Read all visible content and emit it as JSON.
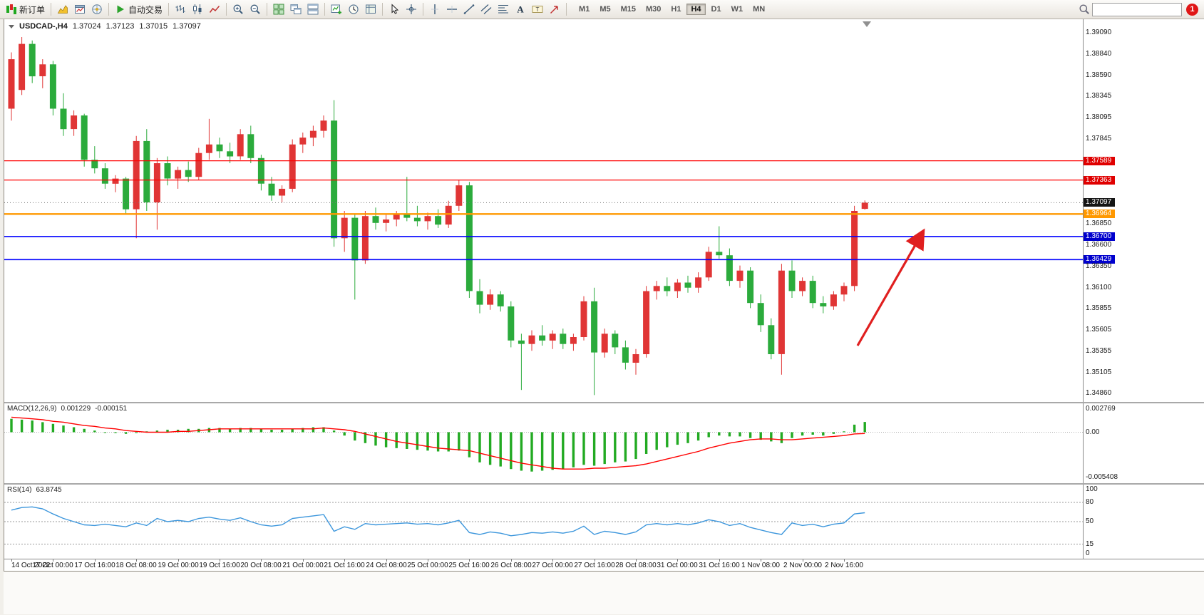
{
  "toolbar": {
    "new_order_label": "新订单",
    "autotrade_label": "自动交易",
    "groups": {
      "market": [
        "market-watch-icon",
        "chart-window-icon",
        "navigator-icon"
      ],
      "chart_types": [
        "bar-chart-icon",
        "candlestick-chart-icon",
        "line-chart-icon"
      ],
      "zoom": [
        "zoom-in-icon",
        "zoom-out-icon"
      ],
      "windows": [
        "tile-windows-icon",
        "cascade-windows-icon",
        "arrange-windows-icon"
      ],
      "chart_tools": [
        "new-chart-icon",
        "timeframe-clock-icon",
        "templates-icon"
      ],
      "pointer": [
        "cursor-icon",
        "crosshair-icon"
      ],
      "drawing": [
        "vertical-line-icon",
        "horizontal-line-icon",
        "trendline-icon",
        "equidistant-channel-icon",
        "fibonacci-icon",
        "text-icon",
        "text-label-icon",
        "arrow-shapes-icon"
      ]
    },
    "periods": [
      "M1",
      "M5",
      "M15",
      "M30",
      "H1",
      "H4",
      "D1",
      "W1",
      "MN"
    ],
    "active_period": "H4",
    "search_placeholder": "",
    "notification_count": "1"
  },
  "chart": {
    "title": "USDCAD-,H4",
    "open": "1.37024",
    "high": "1.37123",
    "low": "1.37015",
    "close": "1.37097"
  },
  "chart_data": {
    "type": "candlestick",
    "symbol": "USDCAD-",
    "timeframe": "H4",
    "price_range": [
      1.3486,
      1.3909
    ],
    "current_price": 1.37097,
    "colors": {
      "up_color": "#e03535",
      "down_color": "#2bab3c",
      "macd_hist": "#22aa22",
      "macd_signal": "#ff0000",
      "rsi_line": "#3c96dc",
      "arrow": "#e01f1f"
    },
    "candles": [
      [
        1.382,
        1.3886,
        1.3806,
        1.3878
      ],
      [
        1.3842,
        1.3904,
        1.3836,
        1.3896
      ],
      [
        1.3896,
        1.39,
        1.385,
        1.3858
      ],
      [
        1.3858,
        1.3878,
        1.3844,
        1.3872
      ],
      [
        1.3872,
        1.3876,
        1.3812,
        1.382
      ],
      [
        1.382,
        1.3838,
        1.3788,
        1.3796
      ],
      [
        1.3796,
        1.3818,
        1.3788,
        1.3812
      ],
      [
        1.3812,
        1.3814,
        1.3752,
        1.376
      ],
      [
        1.376,
        1.3776,
        1.3744,
        1.375
      ],
      [
        1.375,
        1.3756,
        1.3726,
        1.3732
      ],
      [
        1.3732,
        1.3742,
        1.3722,
        1.3738
      ],
      [
        1.3738,
        1.374,
        1.3696,
        1.3702
      ],
      [
        1.3702,
        1.3788,
        1.3668,
        1.3782
      ],
      [
        1.3782,
        1.3796,
        1.37,
        1.371
      ],
      [
        1.371,
        1.3762,
        1.3678,
        1.3756
      ],
      [
        1.3756,
        1.3764,
        1.373,
        1.3738
      ],
      [
        1.3738,
        1.3752,
        1.3726,
        1.3748
      ],
      [
        1.3748,
        1.3758,
        1.3734,
        1.374
      ],
      [
        1.374,
        1.3774,
        1.3736,
        1.3768
      ],
      [
        1.3768,
        1.3808,
        1.376,
        1.3778
      ],
      [
        1.3778,
        1.3786,
        1.3762,
        1.377
      ],
      [
        1.377,
        1.378,
        1.3756,
        1.3764
      ],
      [
        1.3764,
        1.3796,
        1.376,
        1.379
      ],
      [
        1.379,
        1.38,
        1.3756,
        1.3762
      ],
      [
        1.3762,
        1.3766,
        1.3724,
        1.3732
      ],
      [
        1.3732,
        1.374,
        1.3712,
        1.3718
      ],
      [
        1.3718,
        1.373,
        1.371,
        1.3726
      ],
      [
        1.3726,
        1.3784,
        1.3722,
        1.3778
      ],
      [
        1.3778,
        1.3792,
        1.3768,
        1.3786
      ],
      [
        1.3786,
        1.38,
        1.3776,
        1.3794
      ],
      [
        1.3794,
        1.3812,
        1.3786,
        1.3806
      ],
      [
        1.3806,
        1.383,
        1.3658,
        1.3668
      ],
      [
        1.3668,
        1.37,
        1.3652,
        1.3692
      ],
      [
        1.3692,
        1.3696,
        1.3596,
        1.3642
      ],
      [
        1.3642,
        1.37,
        1.3638,
        1.3694
      ],
      [
        1.3694,
        1.3704,
        1.3678,
        1.3686
      ],
      [
        1.3686,
        1.3696,
        1.3676,
        1.369
      ],
      [
        1.369,
        1.37,
        1.3682,
        1.3696
      ],
      [
        1.3696,
        1.374,
        1.3688,
        1.3692
      ],
      [
        1.3692,
        1.3706,
        1.3682,
        1.3688
      ],
      [
        1.3688,
        1.3698,
        1.3678,
        1.3694
      ],
      [
        1.3694,
        1.3702,
        1.368,
        1.3684
      ],
      [
        1.3684,
        1.3712,
        1.368,
        1.3706
      ],
      [
        1.3706,
        1.3736,
        1.37,
        1.373
      ],
      [
        1.373,
        1.3734,
        1.3598,
        1.3606
      ],
      [
        1.3606,
        1.362,
        1.358,
        1.359
      ],
      [
        1.359,
        1.3608,
        1.3584,
        1.3602
      ],
      [
        1.3602,
        1.3606,
        1.3582,
        1.3588
      ],
      [
        1.3588,
        1.3594,
        1.354,
        1.3548
      ],
      [
        1.3548,
        1.3556,
        1.349,
        1.3544
      ],
      [
        1.3544,
        1.356,
        1.3536,
        1.3554
      ],
      [
        1.3554,
        1.3566,
        1.3542,
        1.3548
      ],
      [
        1.3548,
        1.356,
        1.3538,
        1.3556
      ],
      [
        1.3556,
        1.3562,
        1.3538,
        1.3544
      ],
      [
        1.3544,
        1.3556,
        1.3536,
        1.3552
      ],
      [
        1.3552,
        1.36,
        1.3548,
        1.3594
      ],
      [
        1.3594,
        1.361,
        1.3484,
        1.3534
      ],
      [
        1.3534,
        1.3562,
        1.3528,
        1.3556
      ],
      [
        1.3556,
        1.356,
        1.3532,
        1.354
      ],
      [
        1.354,
        1.3548,
        1.3514,
        1.3522
      ],
      [
        1.3522,
        1.3538,
        1.3508,
        1.3532
      ],
      [
        1.3532,
        1.3612,
        1.3528,
        1.3606
      ],
      [
        1.3606,
        1.3618,
        1.3596,
        1.3612
      ],
      [
        1.3612,
        1.3622,
        1.36,
        1.3606
      ],
      [
        1.3606,
        1.362,
        1.3598,
        1.3616
      ],
      [
        1.3616,
        1.3624,
        1.3604,
        1.361
      ],
      [
        1.361,
        1.3628,
        1.3604,
        1.3622
      ],
      [
        1.3622,
        1.3658,
        1.3618,
        1.3652
      ],
      [
        1.3652,
        1.3682,
        1.3644,
        1.3648
      ],
      [
        1.3648,
        1.3656,
        1.3612,
        1.3618
      ],
      [
        1.3618,
        1.3636,
        1.361,
        1.363
      ],
      [
        1.363,
        1.3634,
        1.3586,
        1.3592
      ],
      [
        1.3592,
        1.3602,
        1.3558,
        1.3566
      ],
      [
        1.3566,
        1.3574,
        1.3526,
        1.3532
      ],
      [
        1.3532,
        1.3638,
        1.3508,
        1.363
      ],
      [
        1.363,
        1.3642,
        1.3598,
        1.3606
      ],
      [
        1.3606,
        1.3622,
        1.36,
        1.3618
      ],
      [
        1.3618,
        1.3624,
        1.3586,
        1.3592
      ],
      [
        1.3592,
        1.36,
        1.358,
        1.3588
      ],
      [
        1.3588,
        1.3606,
        1.3584,
        1.3602
      ],
      [
        1.3602,
        1.3616,
        1.3594,
        1.3612
      ],
      [
        1.3612,
        1.3706,
        1.3606,
        1.37
      ],
      [
        1.37024,
        1.37123,
        1.37015,
        1.37097
      ]
    ],
    "hlines": [
      {
        "price": 1.37589,
        "color": "#ff0000",
        "width": 1.3,
        "label": "1.37589"
      },
      {
        "price": 1.37363,
        "color": "#ff0000",
        "width": 1.3,
        "label": "1.37363"
      },
      {
        "price": 1.36964,
        "color": "#ff9800",
        "width": 2.4,
        "label": "1.36964"
      },
      {
        "price": 1.367,
        "color": "#0000ff",
        "width": 1.6,
        "label": "1.36700"
      },
      {
        "price": 1.36429,
        "color": "#0000ff",
        "width": 1.6,
        "label": "1.36429"
      }
    ],
    "arrow": {
      "from": {
        "bar": 81.3,
        "price": 1.3542
      },
      "to": {
        "bar": 87.6,
        "price": 1.3676
      }
    },
    "price_axis": [
      {
        "label": "1.39090",
        "price": 1.3909,
        "style": "normal"
      },
      {
        "label": "1.38840",
        "price": 1.3884,
        "style": "normal"
      },
      {
        "label": "1.38590",
        "price": 1.3859,
        "style": "normal"
      },
      {
        "label": "1.38345",
        "price": 1.38345,
        "style": "normal"
      },
      {
        "label": "1.38095",
        "price": 1.38095,
        "style": "normal"
      },
      {
        "label": "1.37845",
        "price": 1.37845,
        "style": "normal"
      },
      {
        "label": "1.37589",
        "price": 1.37589,
        "style": "red"
      },
      {
        "label": "1.37363",
        "price": 1.37363,
        "style": "red"
      },
      {
        "label": "1.37097",
        "price": 1.37097,
        "style": "current"
      },
      {
        "label": "1.36964",
        "price": 1.36964,
        "style": "orange"
      },
      {
        "label": "1.36850",
        "price": 1.3685,
        "style": "normal"
      },
      {
        "label": "1.36700",
        "price": 1.367,
        "style": "blue"
      },
      {
        "label": "1.36600",
        "price": 1.366,
        "style": "normal"
      },
      {
        "label": "1.36429",
        "price": 1.36429,
        "style": "blue"
      },
      {
        "label": "1.36350",
        "price": 1.3635,
        "style": "normal"
      },
      {
        "label": "1.36100",
        "price": 1.361,
        "style": "normal"
      },
      {
        "label": "1.35855",
        "price": 1.35855,
        "style": "normal"
      },
      {
        "label": "1.35605",
        "price": 1.35605,
        "style": "normal"
      },
      {
        "label": "1.35355",
        "price": 1.35355,
        "style": "normal"
      },
      {
        "label": "1.35105",
        "price": 1.35105,
        "style": "normal"
      },
      {
        "label": "1.34860",
        "price": 1.3486,
        "style": "normal"
      }
    ],
    "time_labels": [
      {
        "bar": 0,
        "label": "14 Oct 2022"
      },
      {
        "bar": 4,
        "label": "17 Oct 00:00"
      },
      {
        "bar": 8,
        "label": "17 Oct 16:00"
      },
      {
        "bar": 12,
        "label": "18 Oct 08:00"
      },
      {
        "bar": 16,
        "label": "19 Oct 00:00"
      },
      {
        "bar": 20,
        "label": "19 Oct 16:00"
      },
      {
        "bar": 24,
        "label": "20 Oct 08:00"
      },
      {
        "bar": 28,
        "label": "21 Oct 00:00"
      },
      {
        "bar": 32,
        "label": "21 Oct 16:00"
      },
      {
        "bar": 36,
        "label": "24 Oct 08:00"
      },
      {
        "bar": 40,
        "label": "25 Oct 00:00"
      },
      {
        "bar": 44,
        "label": "25 Oct 16:00"
      },
      {
        "bar": 48,
        "label": "26 Oct 08:00"
      },
      {
        "bar": 52,
        "label": "27 Oct 00:00"
      },
      {
        "bar": 56,
        "label": "27 Oct 16:00"
      },
      {
        "bar": 60,
        "label": "28 Oct 08:00"
      },
      {
        "bar": 64,
        "label": "31 Oct 00:00"
      },
      {
        "bar": 68,
        "label": "31 Oct 16:00"
      },
      {
        "bar": 72,
        "label": "1 Nov 08:00"
      },
      {
        "bar": 76,
        "label": "2 Nov 00:00"
      },
      {
        "bar": 80,
        "label": "2 Nov 16:00"
      }
    ],
    "macd": {
      "name": "MACD(12,26,9)",
      "main_value": "0.001229",
      "signal_value": "-0.000151",
      "axis": [
        {
          "label": "0.002769",
          "value": 0.002769
        },
        {
          "label": "0.00",
          "value": 0
        },
        {
          "label": "-0.005408",
          "value": -0.005408
        }
      ],
      "hist": [
        0.0016,
        0.0015,
        0.0014,
        0.0012,
        0.001,
        0.0008,
        0.0006,
        0.0004,
        0.0002,
        0.0,
        -0.0001,
        -0.0002,
        -0.0001,
        0.0001,
        0.0002,
        0.0003,
        0.0003,
        0.0004,
        0.0004,
        0.0005,
        0.0005,
        0.0004,
        0.0005,
        0.0005,
        0.0004,
        0.0003,
        0.0003,
        0.0004,
        0.0005,
        0.0006,
        0.0006,
        0.0002,
        -0.0004,
        -0.001,
        -0.0013,
        -0.0016,
        -0.0018,
        -0.0019,
        -0.002,
        -0.0021,
        -0.0022,
        -0.0023,
        -0.0023,
        -0.0022,
        -0.003,
        -0.0036,
        -0.0039,
        -0.0041,
        -0.0044,
        -0.0046,
        -0.0047,
        -0.0046,
        -0.0045,
        -0.0044,
        -0.0042,
        -0.0039,
        -0.004,
        -0.0038,
        -0.0036,
        -0.0035,
        -0.0032,
        -0.0026,
        -0.0021,
        -0.0018,
        -0.0015,
        -0.0013,
        -0.001,
        -0.0006,
        -0.0004,
        -0.0005,
        -0.0005,
        -0.0007,
        -0.0009,
        -0.0011,
        -0.0013,
        -0.0007,
        -0.0004,
        -0.0003,
        -0.0004,
        -0.0002,
        0.0001,
        0.0009,
        0.001229
      ],
      "signal": [
        0.0018,
        0.0017,
        0.0016,
        0.0015,
        0.0013,
        0.0012,
        0.001,
        0.0008,
        0.0007,
        0.0005,
        0.0004,
        0.0002,
        0.0001,
        0.0,
        0.0,
        0.0,
        0.0001,
        0.0001,
        0.0002,
        0.0003,
        0.0004,
        0.0004,
        0.0004,
        0.0004,
        0.0004,
        0.0004,
        0.0004,
        0.0004,
        0.0004,
        0.0004,
        0.0005,
        0.0004,
        0.0003,
        0.0001,
        -0.0002,
        -0.0005,
        -0.0008,
        -0.0011,
        -0.0013,
        -0.0015,
        -0.0017,
        -0.0019,
        -0.002,
        -0.0021,
        -0.0022,
        -0.0025,
        -0.0028,
        -0.0031,
        -0.0034,
        -0.0037,
        -0.0039,
        -0.0041,
        -0.0043,
        -0.0044,
        -0.0044,
        -0.0044,
        -0.0043,
        -0.0043,
        -0.0042,
        -0.0041,
        -0.004,
        -0.0038,
        -0.0035,
        -0.0032,
        -0.0029,
        -0.0026,
        -0.0023,
        -0.0019,
        -0.0016,
        -0.0013,
        -0.0011,
        -0.0009,
        -0.0008,
        -0.0008,
        -0.0009,
        -0.0009,
        -0.0008,
        -0.0007,
        -0.0006,
        -0.0005,
        -0.0004,
        -0.0002,
        -0.000151
      ]
    },
    "rsi": {
      "name": "RSI(14)",
      "value": "63.8745",
      "levels": [
        80,
        50,
        15
      ],
      "axis": [
        {
          "label": "100",
          "value": 100
        },
        {
          "label": "80",
          "value": 80
        },
        {
          "label": "50",
          "value": 50
        },
        {
          "label": "15",
          "value": 15
        },
        {
          "label": "0",
          "value": 0
        }
      ],
      "values": [
        68,
        72,
        73,
        70,
        62,
        55,
        50,
        45,
        44,
        46,
        44,
        42,
        48,
        44,
        55,
        50,
        52,
        50,
        55,
        57,
        54,
        52,
        56,
        50,
        45,
        43,
        45,
        55,
        57,
        59,
        61,
        35,
        42,
        38,
        47,
        45,
        46,
        47,
        48,
        46,
        47,
        45,
        48,
        52,
        33,
        30,
        34,
        32,
        28,
        30,
        33,
        32,
        34,
        32,
        35,
        43,
        30,
        35,
        33,
        30,
        34,
        45,
        47,
        45,
        47,
        45,
        48,
        53,
        50,
        44,
        47,
        41,
        37,
        33,
        30,
        48,
        44,
        46,
        42,
        46,
        48,
        62,
        63.87
      ]
    }
  }
}
